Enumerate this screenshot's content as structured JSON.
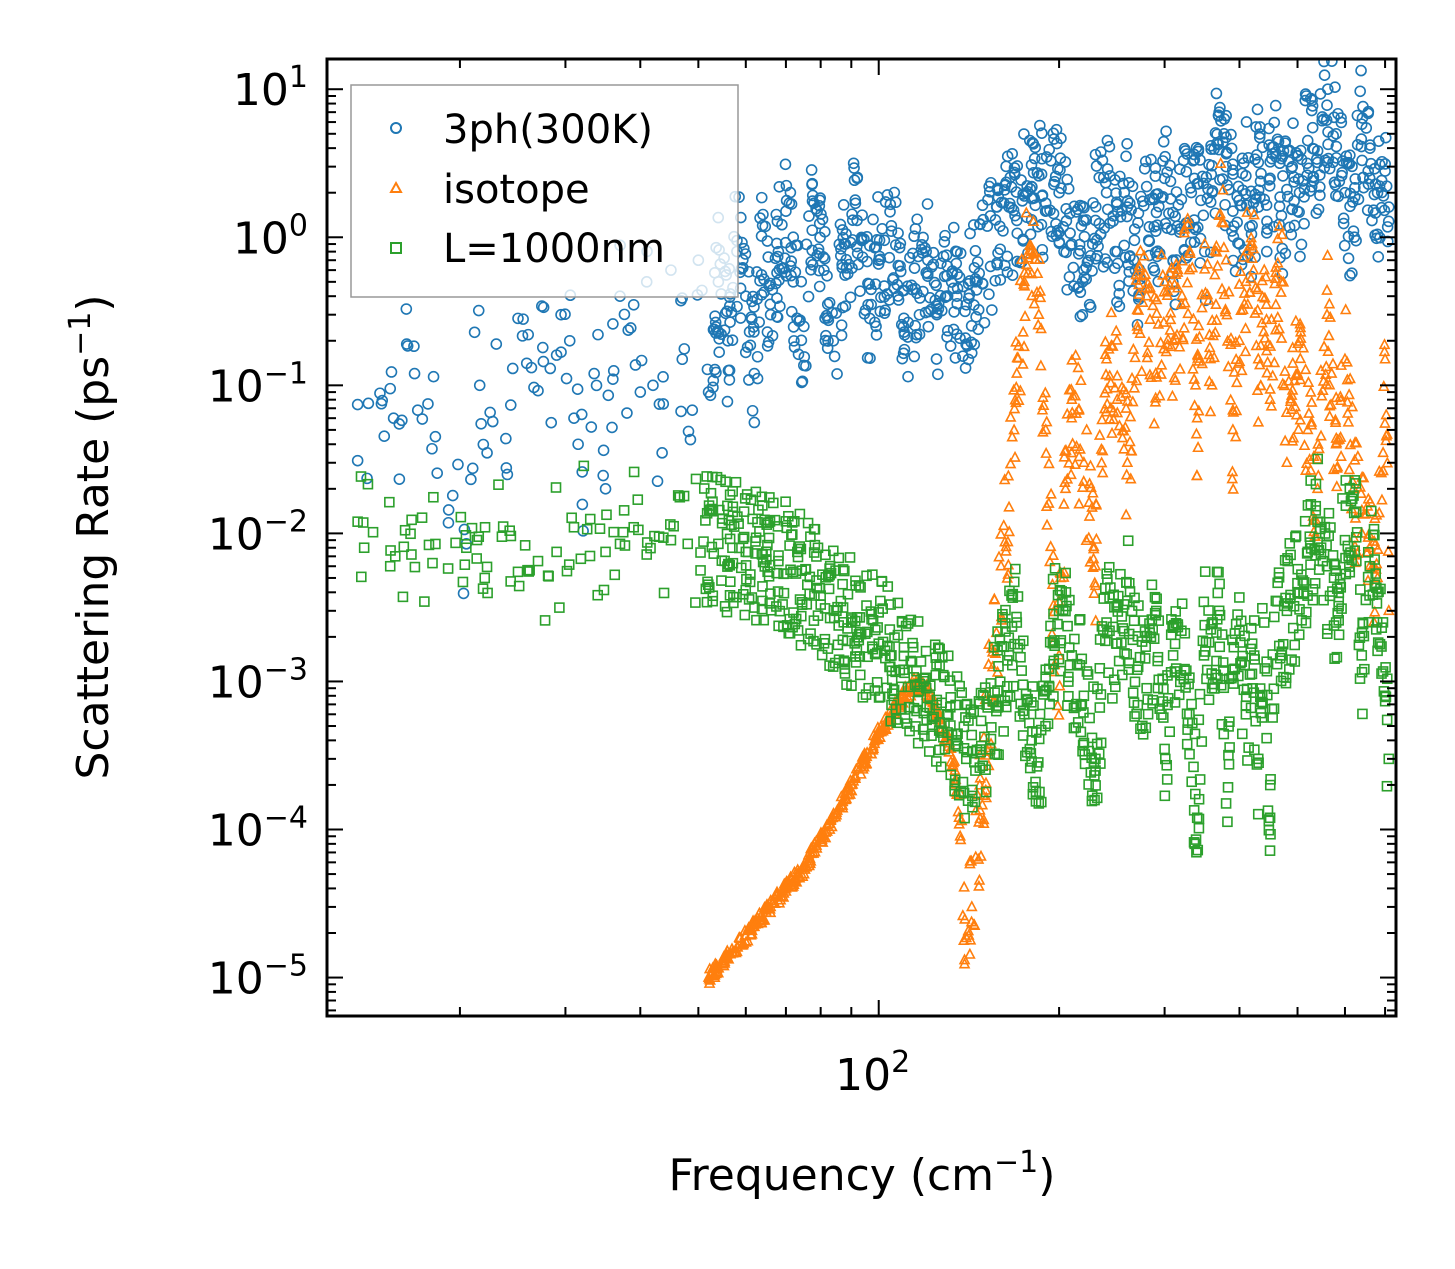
{
  "chart_data": {
    "type": "scatter",
    "title": "",
    "xlabel": "Frequency (cm",
    "xlabel_sup": "−1",
    "xlabel_end": ")",
    "ylabel": "Scattering Rate (ps",
    "ylabel_sup": "−1",
    "ylabel_end": ")",
    "xscale": "log",
    "yscale": "log",
    "xlim": [
      12,
      730
    ],
    "ylim": [
      5.5e-06,
      16
    ],
    "x_ticks": [
      {
        "value": 100,
        "base": "10",
        "exp": "2"
      }
    ],
    "y_ticks": [
      {
        "value": 1e-05,
        "base": "10",
        "exp": "−5"
      },
      {
        "value": 0.0001,
        "base": "10",
        "exp": "−4"
      },
      {
        "value": 0.001,
        "base": "10",
        "exp": "−3"
      },
      {
        "value": 0.01,
        "base": "10",
        "exp": "−2"
      },
      {
        "value": 0.1,
        "base": "10",
        "exp": "−1"
      },
      {
        "value": 1,
        "base": "10",
        "exp": "0"
      },
      {
        "value": 10,
        "base": "10",
        "exp": "1"
      }
    ],
    "legend_position": "top-left",
    "series": [
      {
        "name": "3ph(300K)",
        "marker": "circle",
        "color": "#1f77b4",
        "x": [
          13.5,
          15.3,
          15.5,
          16.0,
          16.3,
          16.8,
          18.2,
          20.5,
          21.5,
          21.7,
          22.2,
          23.0,
          24.0,
          24.5,
          25.5,
          26.0,
          27.0,
          27.5,
          28.3,
          29.0,
          29.5,
          30.5,
          31.0,
          31.5,
          32.0,
          33.5,
          34.0,
          35.0,
          36.0,
          37.0,
          38.0,
          39.0,
          40.0,
          41.0,
          42.0,
          43.5,
          45.0,
          47.0,
          48.5,
          50.0,
          52.0,
          54.0,
          56.0,
          58.0,
          60.0,
          62.0,
          64.0,
          66.0,
          68.0,
          70.0,
          72.0,
          75.0,
          78.0,
          81.0,
          84.0,
          88.0,
          92.0,
          96.0,
          100.0,
          105.0,
          110.0,
          115.0,
          120.0,
          125.0,
          130.0,
          135.0,
          140.0,
          145.0,
          165.0,
          170.0,
          175.0,
          180.0,
          185.0,
          190.0,
          200.0,
          210.0,
          220.0,
          230.0,
          240.0,
          250.0,
          260.0,
          270.0,
          280.0,
          290.0,
          300.0,
          310.0,
          320.0,
          330.0,
          340.0,
          350.0,
          360.0,
          370.0,
          380.0,
          390.0,
          400.0,
          410.0,
          420.0,
          430.0,
          440.0,
          450.0,
          460.0,
          470.0,
          480.0,
          490.0,
          500.0,
          510.0,
          520.0,
          530.0,
          540.0,
          550.0,
          560.0,
          580.0,
          600.0,
          620.0,
          640.0,
          660.0,
          680.0,
          700.0,
          710.0
        ],
        "y": [
          0.031,
          0.095,
          0.06,
          0.058,
          0.19,
          0.12,
          0.045,
          0.0085,
          0.32,
          0.055,
          0.035,
          0.19,
          0.025,
          0.13,
          0.28,
          0.22,
          0.092,
          0.18,
          0.13,
          0.16,
          0.3,
          0.2,
          0.06,
          0.04,
          0.026,
          0.12,
          0.22,
          0.02,
          0.11,
          0.4,
          0.065,
          0.35,
          0.09,
          0.5,
          0.1,
          0.035,
          0.6,
          0.15,
          0.043,
          0.7,
          0.09,
          0.5,
          0.2,
          0.95,
          0.4,
          0.12,
          1.2,
          0.3,
          0.8,
          1.5,
          0.5,
          0.25,
          1.7,
          0.6,
          0.2,
          0.9,
          1.3,
          0.35,
          0.7,
          1.1,
          0.25,
          0.45,
          0.8,
          0.3,
          0.55,
          0.4,
          0.35,
          0.5,
          1.6,
          1.3,
          1.9,
          2.2,
          2.6,
          1.7,
          2.0,
          0.9,
          0.6,
          1.3,
          2.0,
          0.8,
          1.6,
          0.55,
          2.2,
          1.1,
          2.5,
          0.7,
          1.8,
          1.2,
          2.3,
          0.8,
          2.0,
          7.0,
          3.0,
          1.5,
          0.9,
          2.6,
          1.2,
          3.2,
          1.8,
          2.5,
          3.5,
          1.4,
          2.1,
          3.0,
          1.5,
          2.4,
          4.5,
          5.5,
          3.2,
          6.5,
          7.8,
          5.0,
          2.0,
          1.1,
          5.8,
          2.5,
          2.0,
          2.8,
          1.6
        ],
        "note": "Dense band of points approx. 0.1–1.7 ps^-1 over 55–145 cm^-1 and 0.5–8 ps^-1 over 165–720 cm^-1"
      },
      {
        "name": "isotope",
        "marker": "triangle",
        "color": "#ff7f0e",
        "x": [
          52.0,
          55.0,
          58.0,
          62.0,
          66.0,
          70.0,
          75.0,
          80.0,
          85.0,
          90.0,
          95.0,
          100.0,
          105.0,
          110.0,
          115.0,
          120.0,
          125.0,
          130.0,
          134.0,
          137.0,
          140.0,
          143.0,
          160.0,
          165.0,
          170.0,
          175.0,
          180.0,
          185.0,
          190.0,
          195.0,
          200.0,
          205.0,
          210.0,
          220.0,
          230.0,
          240.0,
          250.0,
          260.0,
          270.0,
          280.0,
          290.0,
          300.0,
          310.0,
          320.0,
          330.0,
          340.0,
          350.0,
          360.0,
          370.0,
          380.0,
          390.0,
          400.0,
          410.0,
          420.0,
          430.0,
          440.0,
          450.0,
          460.0,
          470.0,
          480.0,
          500.0,
          520.0,
          540.0,
          560.0,
          580.0,
          600.0,
          620.0,
          640.0,
          660.0,
          680.0,
          700.0,
          710.0
        ],
        "y": [
          1e-05,
          1.25e-05,
          1.6e-05,
          2.2e-05,
          3e-05,
          4e-05,
          5.5e-05,
          8.5e-05,
          0.00013,
          0.0002,
          0.0003,
          0.00045,
          0.0006,
          0.0008,
          0.00095,
          0.0009,
          0.0006,
          0.0004,
          0.00025,
          8.5e-05,
          1.85e-05,
          3e-05,
          0.006,
          0.015,
          0.12,
          0.5,
          0.8,
          0.3,
          0.05,
          0.0045,
          0.0015,
          0.02,
          0.08,
          0.03,
          0.006,
          0.15,
          0.08,
          0.03,
          0.25,
          0.4,
          0.12,
          0.5,
          0.2,
          0.35,
          0.6,
          0.06,
          0.9,
          0.1,
          1.4,
          0.7,
          0.05,
          0.2,
          0.5,
          0.9,
          0.15,
          0.6,
          0.08,
          0.35,
          0.5,
          0.03,
          0.12,
          0.05,
          0.02,
          0.3,
          0.04,
          0.15,
          0.02,
          0.01,
          0.008,
          0.005,
          0.15,
          0.003
        ],
        "note": "Smooth rising branch from 52–130 cm^-1, then dense band 0.001–1.4 ps^-1 over 160–720 cm^-1"
      },
      {
        "name": "L=1000nm",
        "marker": "square",
        "color": "#2ca02c",
        "x": [
          13.5,
          15.3,
          15.6,
          16.2,
          16.6,
          18.0,
          20.5,
          21.5,
          22.0,
          23.5,
          25.0,
          27.0,
          29.0,
          31.0,
          33.0,
          35.0,
          37.0,
          39.0,
          41.0,
          43.0,
          45.0,
          48.0,
          51.0,
          54.0,
          57.0,
          60.0,
          64.0,
          68.0,
          72.0,
          76.0,
          80.0,
          85.0,
          90.0,
          95.0,
          100.0,
          105.0,
          110.0,
          115.0,
          120.0,
          125.0,
          130.0,
          135.0,
          140.0,
          145.0,
          165.0,
          170.0,
          175.0,
          180.0,
          185.0,
          190.0,
          200.0,
          210.0,
          220.0,
          230.0,
          240.0,
          250.0,
          260.0,
          270.0,
          280.0,
          290.0,
          300.0,
          310.0,
          320.0,
          330.0,
          340.0,
          350.0,
          360.0,
          370.0,
          380.0,
          390.0,
          400.0,
          410.0,
          420.0,
          430.0,
          440.0,
          450.0,
          460.0,
          470.0,
          480.0,
          500.0,
          520.0,
          540.0,
          560.0,
          580.0,
          600.0,
          620.0,
          640.0,
          660.0,
          680.0,
          700.0,
          710.0
        ],
        "y": [
          0.012,
          0.006,
          0.007,
          0.0105,
          0.0072,
          0.0063,
          0.008,
          0.0095,
          0.005,
          0.0095,
          0.0055,
          0.0065,
          0.0075,
          0.011,
          0.0125,
          0.0075,
          0.0085,
          0.011,
          0.0072,
          0.0095,
          0.009,
          0.0085,
          0.0088,
          0.0085,
          0.008,
          0.0075,
          0.0072,
          0.0065,
          0.0055,
          0.0045,
          0.0038,
          0.003,
          0.0025,
          0.0021,
          0.0018,
          0.0015,
          0.0012,
          0.00095,
          0.0009,
          0.00075,
          0.0006,
          0.0004,
          0.0003,
          0.00025,
          0.0015,
          0.0025,
          0.0006,
          0.0004,
          0.00015,
          0.0012,
          0.003,
          0.0015,
          0.0008,
          0.0003,
          0.0025,
          0.0018,
          0.0035,
          0.0012,
          0.0009,
          0.0028,
          0.00035,
          0.0015,
          0.0022,
          0.0006,
          0.00012,
          0.0024,
          0.0009,
          0.003,
          0.00015,
          0.0012,
          0.0022,
          0.0006,
          0.0018,
          0.0003,
          0.0025,
          0.00012,
          0.0035,
          0.0015,
          0.003,
          0.004,
          0.0075,
          0.012,
          0.006,
          0.0025,
          0.009,
          0.018,
          0.0015,
          0.006,
          0.004,
          0.0008,
          0.0003
        ],
        "note": "Dense band approx. 0.0001–0.012 ps^-1 across the full range"
      }
    ]
  }
}
